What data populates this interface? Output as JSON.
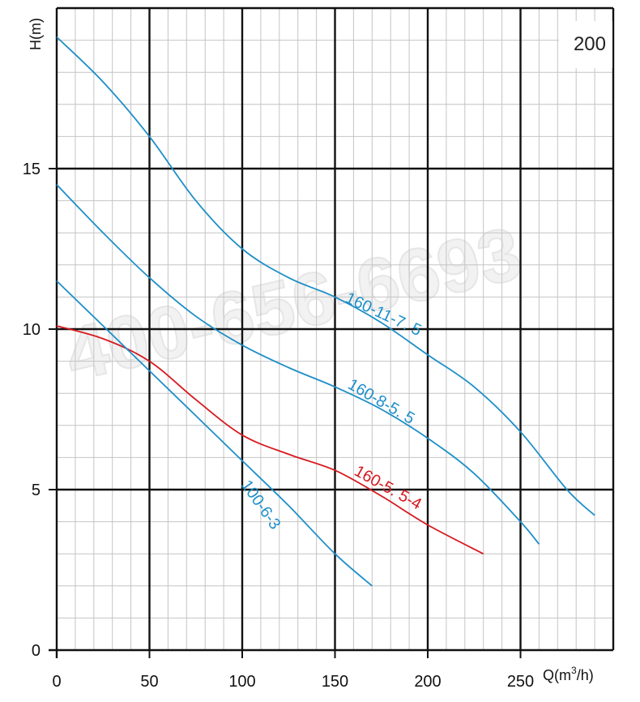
{
  "chart_data": {
    "type": "line",
    "title": "",
    "model_label": "200",
    "watermark": "400-656-6693",
    "xlabel_main": "Q(m",
    "xlabel_sup": "3",
    "xlabel_tail": "/h)",
    "ylabel": "H(m)",
    "xlim": [
      0,
      300
    ],
    "ylim": [
      0,
      20
    ],
    "x_ticks": [
      0,
      50,
      100,
      150,
      200,
      250
    ],
    "y_ticks": [
      0,
      5,
      10,
      15
    ],
    "grid": true,
    "series": [
      {
        "name": "160-11-7. 5",
        "color": "#1e8fc8",
        "x": [
          0,
          25,
          50,
          75,
          100,
          125,
          150,
          175,
          200,
          225,
          250,
          275,
          290
        ],
        "y": [
          19.1,
          17.7,
          16.0,
          14.0,
          12.5,
          11.6,
          11.0,
          10.2,
          9.2,
          8.2,
          6.8,
          5.0,
          4.2
        ]
      },
      {
        "name": "160-8-5. 5",
        "color": "#1e8fc8",
        "x": [
          0,
          25,
          50,
          75,
          100,
          125,
          150,
          175,
          200,
          225,
          250,
          260
        ],
        "y": [
          14.5,
          13.0,
          11.6,
          10.4,
          9.5,
          8.8,
          8.2,
          7.5,
          6.6,
          5.5,
          4.0,
          3.3
        ]
      },
      {
        "name": "160-5. 5-4",
        "color": "#d7191f",
        "x": [
          0,
          25,
          50,
          75,
          100,
          125,
          150,
          175,
          200,
          230
        ],
        "y": [
          10.1,
          9.7,
          9.0,
          7.8,
          6.7,
          6.1,
          5.6,
          4.8,
          3.9,
          3.0
        ]
      },
      {
        "name": "100-6-3",
        "color": "#1e8fc8",
        "x": [
          0,
          25,
          50,
          75,
          100,
          125,
          150,
          170
        ],
        "y": [
          11.5,
          10.1,
          8.7,
          7.3,
          5.9,
          4.5,
          3.0,
          2.0
        ]
      }
    ]
  }
}
